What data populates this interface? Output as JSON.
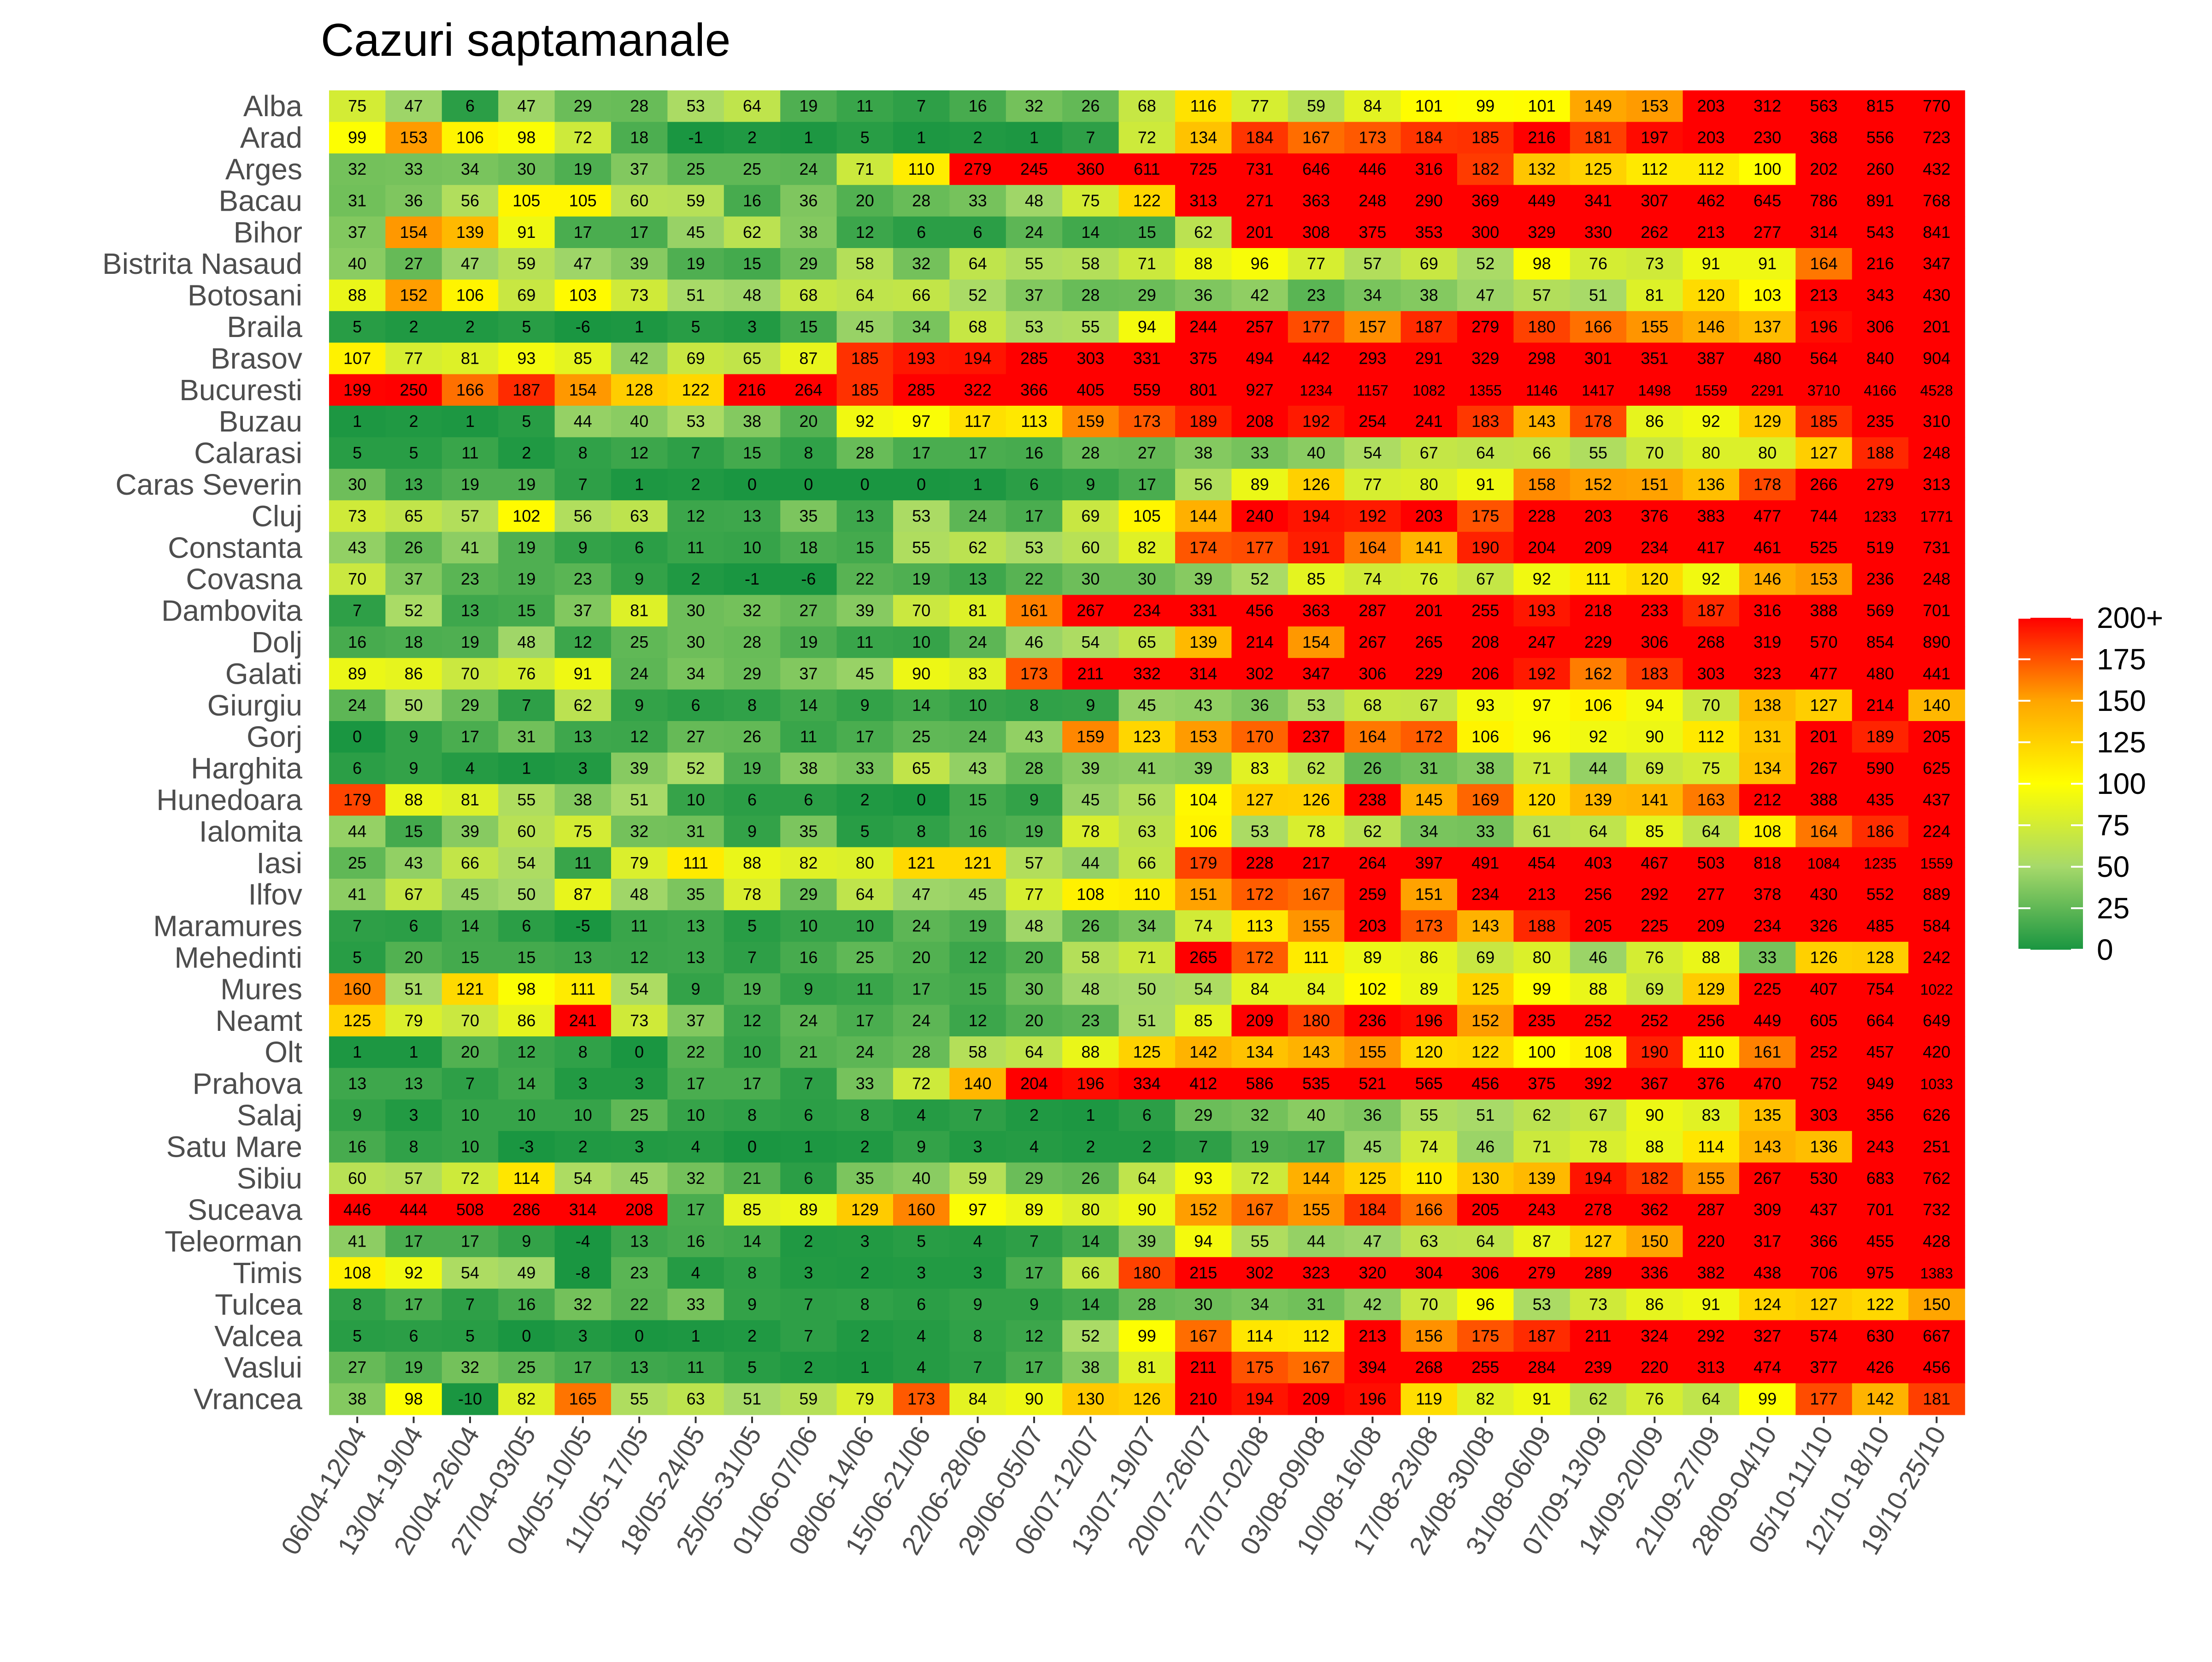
{
  "chart_data": {
    "type": "heatmap",
    "title": "Cazuri saptamanale",
    "xlabel": "",
    "ylabel": "",
    "x": [
      "06/04-12/04",
      "13/04-19/04",
      "20/04-26/04",
      "27/04-03/05",
      "04/05-10/05",
      "11/05-17/05",
      "18/05-24/05",
      "25/05-31/05",
      "01/06-07/06",
      "08/06-14/06",
      "15/06-21/06",
      "22/06-28/06",
      "29/06-05/07",
      "06/07-12/07",
      "13/07-19/07",
      "20/07-26/07",
      "27/07-02/08",
      "03/08-09/08",
      "10/08-16/08",
      "17/08-23/08",
      "24/08-30/08",
      "31/08-06/09",
      "07/09-13/09",
      "14/09-20/09",
      "21/09-27/09",
      "28/09-04/10",
      "05/10-11/10",
      "12/10-18/10",
      "19/10-25/10"
    ],
    "y": [
      "Alba",
      "Arad",
      "Arges",
      "Bacau",
      "Bihor",
      "Bistrita Nasaud",
      "Botosani",
      "Braila",
      "Brasov",
      "Bucuresti",
      "Buzau",
      "Calarasi",
      "Caras Severin",
      "Cluj",
      "Constanta",
      "Covasna",
      "Dambovita",
      "Dolj",
      "Galati",
      "Giurgiu",
      "Gorj",
      "Harghita",
      "Hunedoara",
      "Ialomita",
      "Iasi",
      "Ilfov",
      "Maramures",
      "Mehedinti",
      "Mures",
      "Neamt",
      "Olt",
      "Prahova",
      "Salaj",
      "Satu Mare",
      "Sibiu",
      "Suceava",
      "Teleorman",
      "Timis",
      "Tulcea",
      "Valcea",
      "Vaslui",
      "Vrancea"
    ],
    "values": [
      [
        75,
        47,
        6,
        47,
        29,
        28,
        53,
        64,
        19,
        11,
        7,
        16,
        32,
        26,
        68,
        116,
        77,
        59,
        84,
        101,
        99,
        101,
        149,
        153,
        203,
        312,
        563,
        815,
        770
      ],
      [
        99,
        153,
        106,
        98,
        72,
        18,
        -1,
        2,
        1,
        5,
        1,
        2,
        1,
        7,
        72,
        134,
        184,
        167,
        173,
        184,
        185,
        216,
        181,
        197,
        203,
        230,
        368,
        556,
        723
      ],
      [
        32,
        33,
        34,
        30,
        19,
        37,
        25,
        25,
        24,
        71,
        110,
        279,
        245,
        360,
        611,
        725,
        731,
        646,
        446,
        316,
        182,
        132,
        125,
        112,
        112,
        100,
        202,
        260,
        432
      ],
      [
        31,
        36,
        56,
        105,
        105,
        60,
        59,
        16,
        36,
        20,
        28,
        33,
        48,
        75,
        122,
        313,
        271,
        363,
        248,
        290,
        369,
        449,
        341,
        307,
        462,
        645,
        786,
        891,
        768
      ],
      [
        37,
        154,
        139,
        91,
        17,
        17,
        45,
        62,
        38,
        12,
        6,
        6,
        24,
        14,
        15,
        62,
        201,
        308,
        375,
        353,
        300,
        329,
        330,
        262,
        213,
        277,
        314,
        543,
        841
      ],
      [
        40,
        27,
        47,
        59,
        47,
        39,
        19,
        15,
        29,
        58,
        32,
        64,
        55,
        58,
        71,
        88,
        96,
        77,
        57,
        69,
        52,
        98,
        76,
        73,
        91,
        91,
        164,
        216,
        347
      ],
      [
        88,
        152,
        106,
        69,
        103,
        73,
        51,
        48,
        68,
        64,
        66,
        52,
        37,
        28,
        29,
        36,
        42,
        23,
        34,
        38,
        47,
        57,
        51,
        81,
        120,
        103,
        213,
        343,
        430
      ],
      [
        5,
        2,
        2,
        5,
        -6,
        1,
        5,
        3,
        15,
        45,
        34,
        68,
        53,
        55,
        94,
        244,
        257,
        177,
        157,
        187,
        279,
        180,
        166,
        155,
        146,
        137,
        196,
        306,
        201
      ],
      [
        107,
        77,
        81,
        93,
        85,
        42,
        69,
        65,
        87,
        185,
        193,
        194,
        285,
        303,
        331,
        375,
        494,
        442,
        293,
        291,
        329,
        298,
        301,
        351,
        387,
        480,
        564,
        840,
        904
      ],
      [
        199,
        250,
        166,
        187,
        154,
        128,
        122,
        216,
        264,
        185,
        285,
        322,
        366,
        405,
        559,
        801,
        927,
        1234,
        1157,
        1082,
        1355,
        1146,
        1417,
        1498,
        1559,
        2291,
        3710,
        4166,
        4528
      ],
      [
        1,
        2,
        1,
        5,
        44,
        40,
        53,
        38,
        20,
        92,
        97,
        117,
        113,
        159,
        173,
        189,
        208,
        192,
        254,
        241,
        183,
        143,
        178,
        86,
        92,
        129,
        185,
        235,
        310
      ],
      [
        5,
        5,
        11,
        2,
        8,
        12,
        7,
        15,
        8,
        28,
        17,
        17,
        16,
        28,
        27,
        38,
        33,
        40,
        54,
        67,
        64,
        66,
        55,
        70,
        80,
        80,
        127,
        188,
        248
      ],
      [
        30,
        13,
        19,
        19,
        7,
        1,
        2,
        0,
        0,
        0,
        0,
        1,
        6,
        9,
        17,
        56,
        89,
        126,
        77,
        80,
        91,
        158,
        152,
        151,
        136,
        178,
        266,
        279,
        313
      ],
      [
        73,
        65,
        57,
        102,
        56,
        63,
        12,
        13,
        35,
        13,
        53,
        24,
        17,
        69,
        105,
        144,
        240,
        194,
        192,
        203,
        175,
        228,
        203,
        376,
        383,
        477,
        744,
        1233,
        1771
      ],
      [
        43,
        26,
        41,
        19,
        9,
        6,
        11,
        10,
        18,
        15,
        55,
        62,
        53,
        60,
        82,
        174,
        177,
        191,
        164,
        141,
        190,
        204,
        209,
        234,
        417,
        461,
        525,
        519,
        731
      ],
      [
        70,
        37,
        23,
        19,
        23,
        9,
        2,
        -1,
        -6,
        22,
        19,
        13,
        22,
        30,
        30,
        39,
        52,
        85,
        74,
        76,
        67,
        92,
        111,
        120,
        92,
        146,
        153,
        236,
        248
      ],
      [
        7,
        52,
        13,
        15,
        37,
        81,
        30,
        32,
        27,
        39,
        70,
        81,
        161,
        267,
        234,
        331,
        456,
        363,
        287,
        201,
        255,
        193,
        218,
        233,
        187,
        316,
        388,
        569,
        701
      ],
      [
        16,
        18,
        19,
        48,
        12,
        25,
        30,
        28,
        19,
        11,
        10,
        24,
        46,
        54,
        65,
        139,
        214,
        154,
        267,
        265,
        208,
        247,
        229,
        306,
        268,
        319,
        570,
        854,
        890
      ],
      [
        89,
        86,
        70,
        76,
        91,
        24,
        34,
        29,
        37,
        45,
        90,
        83,
        173,
        211,
        332,
        314,
        302,
        347,
        306,
        229,
        206,
        192,
        162,
        183,
        303,
        323,
        477,
        480,
        441
      ],
      [
        24,
        50,
        29,
        7,
        62,
        9,
        6,
        8,
        14,
        9,
        14,
        10,
        8,
        9,
        45,
        43,
        36,
        53,
        68,
        67,
        93,
        97,
        106,
        94,
        70,
        138,
        127,
        214,
        140
      ],
      [
        0,
        9,
        17,
        31,
        13,
        12,
        27,
        26,
        11,
        17,
        25,
        24,
        43,
        159,
        123,
        153,
        170,
        237,
        164,
        172,
        106,
        96,
        92,
        90,
        112,
        131,
        201,
        189,
        205
      ],
      [
        6,
        9,
        4,
        1,
        3,
        39,
        52,
        19,
        38,
        33,
        65,
        43,
        28,
        39,
        41,
        39,
        83,
        62,
        26,
        31,
        38,
        71,
        44,
        69,
        75,
        134,
        267,
        590,
        625
      ],
      [
        179,
        88,
        81,
        55,
        38,
        51,
        10,
        6,
        6,
        2,
        0,
        15,
        9,
        45,
        56,
        104,
        127,
        126,
        238,
        145,
        169,
        120,
        139,
        141,
        163,
        212,
        388,
        435,
        437
      ],
      [
        44,
        15,
        39,
        60,
        75,
        32,
        31,
        9,
        35,
        5,
        8,
        16,
        19,
        78,
        63,
        106,
        53,
        78,
        62,
        34,
        33,
        61,
        64,
        85,
        64,
        108,
        164,
        186,
        224
      ],
      [
        25,
        43,
        66,
        54,
        11,
        79,
        111,
        88,
        82,
        80,
        121,
        121,
        57,
        44,
        66,
        179,
        228,
        217,
        264,
        397,
        491,
        454,
        403,
        467,
        503,
        818,
        1084,
        1235,
        1559
      ],
      [
        41,
        67,
        45,
        50,
        87,
        48,
        35,
        78,
        29,
        64,
        47,
        45,
        77,
        108,
        110,
        151,
        172,
        167,
        259,
        151,
        234,
        213,
        256,
        292,
        277,
        378,
        430,
        552,
        889
      ],
      [
        7,
        6,
        14,
        6,
        -5,
        11,
        13,
        5,
        10,
        10,
        24,
        19,
        48,
        26,
        34,
        74,
        113,
        155,
        203,
        173,
        143,
        188,
        205,
        225,
        209,
        234,
        326,
        485,
        584
      ],
      [
        5,
        20,
        15,
        15,
        13,
        12,
        13,
        7,
        16,
        25,
        20,
        12,
        20,
        58,
        71,
        265,
        172,
        111,
        89,
        86,
        69,
        80,
        46,
        76,
        88,
        33,
        126,
        128,
        242
      ],
      [
        160,
        51,
        121,
        98,
        111,
        54,
        9,
        19,
        9,
        11,
        17,
        15,
        30,
        48,
        50,
        54,
        84,
        84,
        102,
        89,
        125,
        99,
        88,
        69,
        129,
        225,
        407,
        754,
        1022
      ],
      [
        125,
        79,
        70,
        86,
        241,
        73,
        37,
        12,
        24,
        17,
        24,
        12,
        20,
        23,
        51,
        85,
        209,
        180,
        236,
        196,
        152,
        235,
        252,
        252,
        256,
        449,
        605,
        664,
        649
      ],
      [
        1,
        1,
        20,
        12,
        8,
        0,
        22,
        10,
        21,
        24,
        28,
        58,
        64,
        88,
        125,
        142,
        134,
        143,
        155,
        120,
        122,
        100,
        108,
        190,
        110,
        161,
        252,
        457,
        420
      ],
      [
        13,
        13,
        7,
        14,
        3,
        3,
        17,
        17,
        7,
        33,
        72,
        140,
        204,
        196,
        334,
        412,
        586,
        535,
        521,
        565,
        456,
        375,
        392,
        367,
        376,
        470,
        752,
        949,
        1033
      ],
      [
        9,
        3,
        10,
        10,
        10,
        25,
        10,
        8,
        6,
        8,
        4,
        7,
        2,
        1,
        6,
        29,
        32,
        40,
        36,
        55,
        51,
        62,
        67,
        90,
        83,
        135,
        303,
        356,
        626
      ],
      [
        16,
        8,
        10,
        -3,
        2,
        3,
        4,
        0,
        1,
        2,
        9,
        3,
        4,
        2,
        2,
        7,
        19,
        17,
        45,
        74,
        46,
        71,
        78,
        88,
        114,
        143,
        136,
        243,
        251
      ],
      [
        60,
        57,
        72,
        114,
        54,
        45,
        32,
        21,
        6,
        35,
        40,
        59,
        29,
        26,
        64,
        93,
        72,
        144,
        125,
        110,
        130,
        139,
        194,
        182,
        155,
        267,
        530,
        683,
        762
      ],
      [
        446,
        444,
        508,
        286,
        314,
        208,
        17,
        85,
        89,
        129,
        160,
        97,
        89,
        80,
        90,
        152,
        167,
        155,
        184,
        166,
        205,
        243,
        278,
        362,
        287,
        309,
        437,
        701,
        732
      ],
      [
        41,
        17,
        17,
        9,
        -4,
        13,
        16,
        14,
        2,
        3,
        5,
        4,
        7,
        14,
        39,
        94,
        55,
        44,
        47,
        63,
        64,
        87,
        127,
        150,
        220,
        317,
        366,
        455,
        428
      ],
      [
        108,
        92,
        54,
        49,
        -8,
        23,
        4,
        8,
        3,
        2,
        3,
        3,
        17,
        66,
        180,
        215,
        302,
        323,
        320,
        304,
        306,
        279,
        289,
        336,
        382,
        438,
        706,
        975,
        1383
      ],
      [
        8,
        17,
        7,
        16,
        32,
        22,
        33,
        9,
        7,
        8,
        6,
        9,
        9,
        14,
        28,
        30,
        34,
        31,
        42,
        70,
        96,
        53,
        73,
        86,
        91,
        124,
        127,
        122,
        150
      ],
      [
        5,
        6,
        5,
        0,
        3,
        0,
        1,
        2,
        7,
        2,
        4,
        8,
        12,
        52,
        99,
        167,
        114,
        112,
        213,
        156,
        175,
        187,
        211,
        324,
        292,
        327,
        574,
        630,
        667
      ],
      [
        27,
        19,
        32,
        25,
        17,
        13,
        11,
        5,
        2,
        1,
        4,
        7,
        17,
        38,
        81,
        211,
        175,
        167,
        394,
        268,
        255,
        284,
        239,
        220,
        313,
        474,
        377,
        426,
        456
      ],
      [
        38,
        98,
        -10,
        82,
        165,
        55,
        63,
        51,
        59,
        79,
        173,
        84,
        90,
        130,
        126,
        210,
        194,
        209,
        196,
        119,
        82,
        91,
        62,
        76,
        64,
        99,
        177,
        142,
        181
      ]
    ],
    "color_scale": {
      "min": 0,
      "max": 200,
      "stops": [
        "#1a9641",
        "#a6d96a",
        "#ffff00",
        "#ffa500",
        "#ff0000"
      ],
      "legend_ticks": [
        "0",
        "25",
        "50",
        "75",
        "100",
        "125",
        "150",
        "175",
        "200+"
      ]
    },
    "legend_position": "right",
    "grid": false
  }
}
